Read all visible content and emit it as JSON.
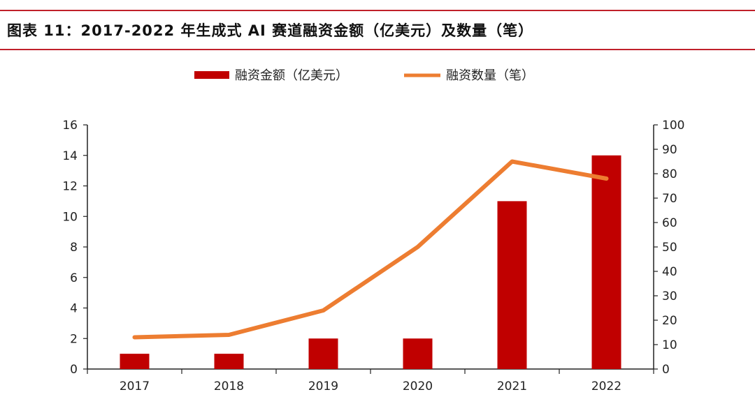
{
  "title": "图表 11：2017-2022 年生成式 AI 赛道融资金额（亿美元）及数量（笔）",
  "colors": {
    "bar": "#c00000",
    "line": "#ed7d31",
    "rule": "#c0202a"
  },
  "chart_data": {
    "type": "bar+line",
    "categories": [
      "2017",
      "2018",
      "2019",
      "2020",
      "2021",
      "2022"
    ],
    "series": [
      {
        "name": "融资金额（亿美元）",
        "type": "bar",
        "axis": "left",
        "values": [
          1,
          1,
          2,
          2,
          11,
          14
        ]
      },
      {
        "name": "融资数量（笔）",
        "type": "line",
        "axis": "right",
        "values": [
          13,
          14,
          24,
          50,
          85,
          78
        ]
      }
    ],
    "left_axis": {
      "ylim": [
        0,
        16
      ],
      "ticks": [
        "0",
        "2",
        "4",
        "6",
        "8",
        "10",
        "12",
        "14",
        "16"
      ]
    },
    "right_axis": {
      "ylim": [
        0,
        100
      ],
      "ticks": [
        "0",
        "10",
        "20",
        "30",
        "40",
        "50",
        "60",
        "70",
        "80",
        "90",
        "100"
      ]
    },
    "legend_position": "top",
    "grid": false
  }
}
